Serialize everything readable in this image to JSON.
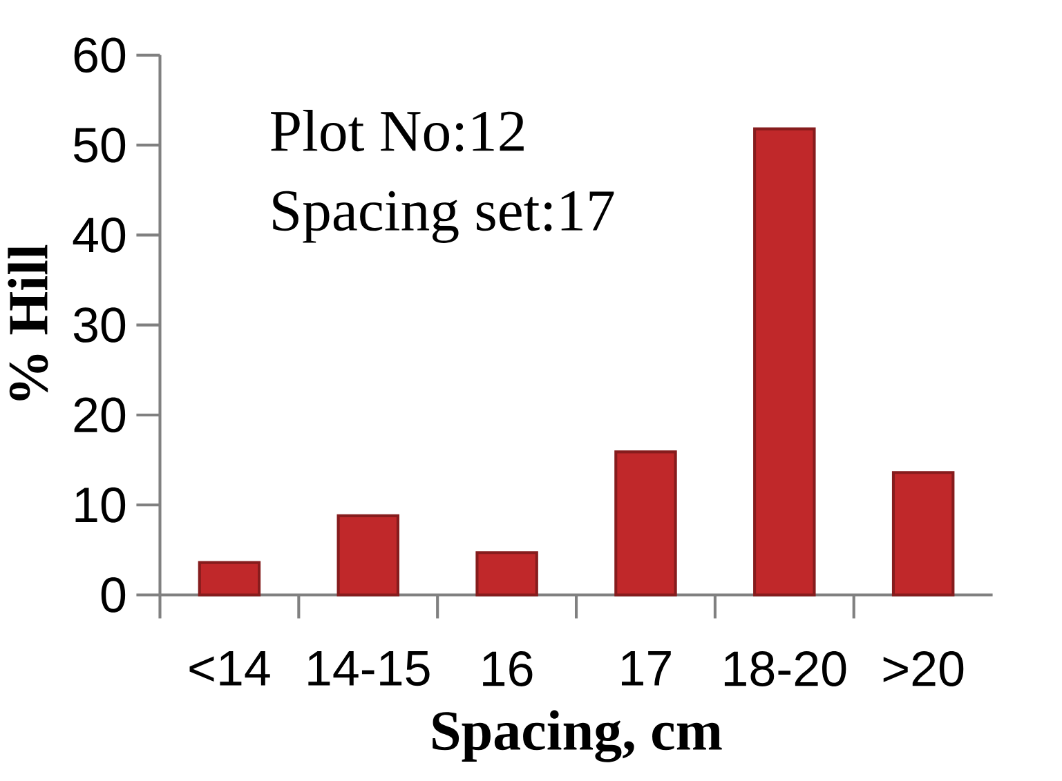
{
  "chart_data": {
    "type": "bar",
    "xlabel": "Spacing, cm",
    "ylabel": "% Hill",
    "annotations": [
      "Plot No:12",
      "Spacing set:17"
    ],
    "categories": [
      "<14",
      "14-15",
      "16",
      "17",
      "18-20",
      ">20"
    ],
    "values": [
      3.6,
      8.8,
      4.7,
      15.9,
      51.8,
      13.6
    ],
    "color": "#c0282a",
    "ylim": [
      0,
      60
    ],
    "yticks": [
      0,
      10,
      20,
      30,
      40,
      50,
      60
    ]
  }
}
